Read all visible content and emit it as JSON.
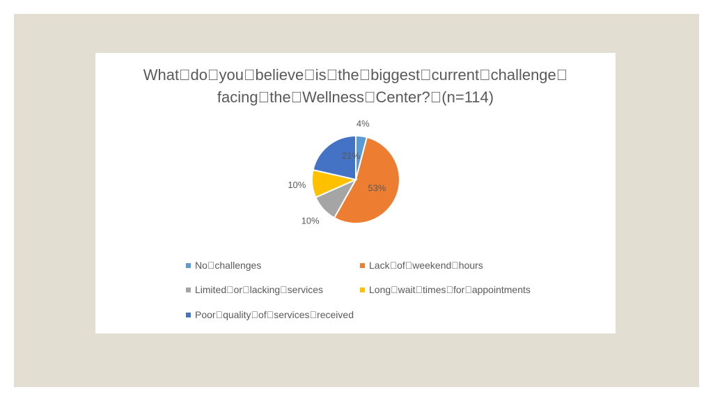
{
  "chart_data": {
    "type": "pie",
    "title_lines": [
      "What\u0000do\u0000you\u0000believe\u0000is\u0000the\u0000biggest\u0000current\u0000challenge\u0000",
      "facing\u0000the\u0000Wellness\u0000Center?\u0000(n=114)"
    ],
    "slices": [
      {
        "name": "No challenges",
        "legend_label": "No\u0000challenges",
        "value": 4,
        "label": "4%",
        "color": "#5b9bd5"
      },
      {
        "name": "Lack of weekend hours",
        "legend_label": "Lack\u0000of\u0000weekend\u0000hours",
        "value": 53,
        "label": "53%",
        "color": "#ed7d31"
      },
      {
        "name": "Limited or lacking services",
        "legend_label": "Limited\u0000or\u0000lacking\u0000services",
        "value": 10,
        "label": "10%",
        "color": "#a5a5a5"
      },
      {
        "name": "Long wait times for appointments",
        "legend_label": "Long\u0000wait\u0000times\u0000for\u0000appointments",
        "value": 10,
        "label": "10%",
        "color": "#ffc000"
      },
      {
        "name": "Poor quality of services received",
        "legend_label": "Poor\u0000quality\u0000of\u0000services\u0000received",
        "value": 21,
        "label": "21%",
        "color": "#4472c4"
      }
    ],
    "legend_position": "bottom"
  }
}
